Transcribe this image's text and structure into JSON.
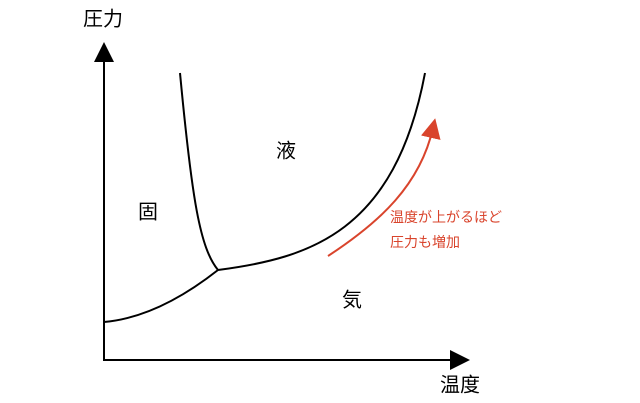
{
  "axes": {
    "y_label": "圧力",
    "x_label": "温度"
  },
  "regions": [
    {
      "label": "固"
    },
    {
      "label": "液"
    },
    {
      "label": "気"
    }
  ],
  "annotation": {
    "lines": [
      "温度が上がるほど",
      "圧力も増加"
    ]
  }
}
